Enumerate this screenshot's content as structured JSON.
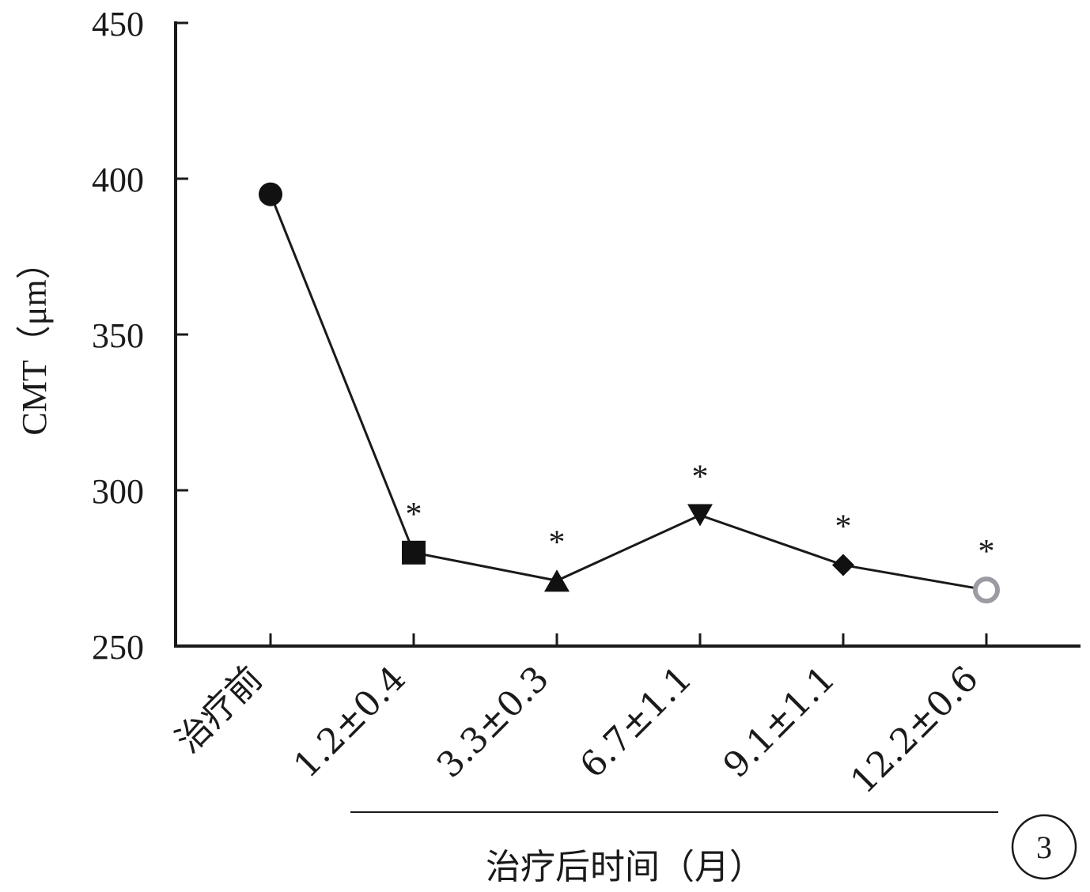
{
  "chart_data": {
    "type": "line",
    "ylabel": "CMT（μm）",
    "xlabel": "治疗后时间（月）",
    "ylim": [
      250,
      450
    ],
    "yticks": [
      250,
      300,
      350,
      400,
      450
    ],
    "categories": [
      "治疗前",
      "1.2±0.4",
      "3.3±0.3",
      "6.7±1.1",
      "9.1±1.1",
      "12.2±0.6"
    ],
    "series": [
      {
        "values": [
          395,
          280,
          271,
          292,
          276,
          268
        ],
        "markers": [
          "circle",
          "square",
          "triangle-up",
          "triangle-down",
          "diamond",
          "open-circle"
        ],
        "significance": [
          "",
          "*",
          "*",
          "*",
          "*",
          "*"
        ]
      }
    ],
    "panel_label": "3",
    "grid": false,
    "colors": {
      "line": "#1a1a1a",
      "marker": "#111111",
      "open_marker": "#9b9ba3"
    }
  }
}
